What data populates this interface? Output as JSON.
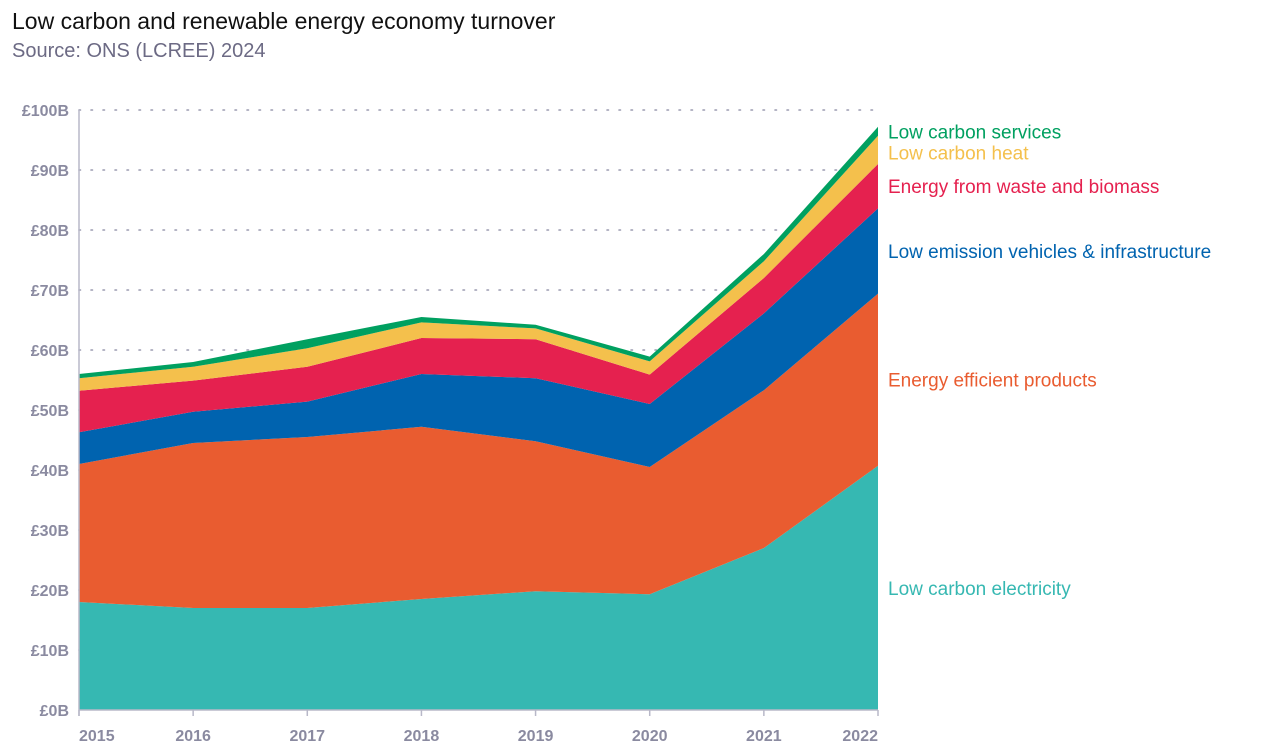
{
  "title": "Low carbon and renewable energy economy turnover",
  "subtitle": "Source: ONS (LCREE) 2024",
  "chart_data": {
    "type": "area",
    "stacked": true,
    "x": [
      "2015",
      "2016",
      "2017",
      "2018",
      "2019",
      "2020",
      "2021",
      "2022"
    ],
    "ylim": [
      0,
      100
    ],
    "yticks": [
      "£0B",
      "£10B",
      "£20B",
      "£30B",
      "£40B",
      "£50B",
      "£60B",
      "£70B",
      "£80B",
      "£90B",
      "£100B"
    ],
    "grid": "horizontal dotted",
    "legend": "right, labels at series ends",
    "series": [
      {
        "name": "Low carbon electricity",
        "color": "#36b8b2",
        "values": [
          18,
          17,
          17,
          18.5,
          19.8,
          19.3,
          27,
          40.7
        ]
      },
      {
        "name": "Energy efficient products",
        "color": "#e95c30",
        "values": [
          23,
          27.5,
          28.5,
          28.7,
          25,
          21.2,
          26.3,
          28.7
        ]
      },
      {
        "name": "Low emission vehicles & infrastructure",
        "color": "#0063af",
        "values": [
          5.3,
          5.2,
          5.9,
          8.8,
          10.5,
          10.5,
          12.8,
          14.2
        ]
      },
      {
        "name": "Energy from waste and biomass",
        "color": "#e5214f",
        "values": [
          6.9,
          5.2,
          5.8,
          6,
          6.5,
          4.9,
          5.9,
          7.4
        ]
      },
      {
        "name": "Low carbon heat",
        "color": "#f4c04c",
        "values": [
          2.1,
          2.3,
          3.1,
          2.6,
          1.8,
          2.2,
          2.8,
          4.7
        ]
      },
      {
        "name": "Low carbon services",
        "color": "#00a060",
        "values": [
          0.7,
          0.8,
          1.5,
          0.9,
          0.6,
          0.8,
          1.2,
          1.5
        ]
      }
    ]
  }
}
